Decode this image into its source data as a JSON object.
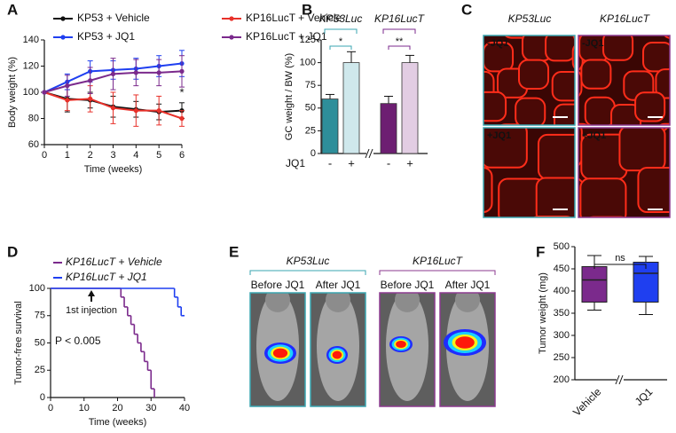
{
  "chart_data": [
    {
      "type": "line",
      "label": "A",
      "xlabel": "Time (weeks)",
      "ylabel": "Body weight (%)",
      "x": [
        0,
        1,
        2,
        3,
        4,
        5,
        6
      ],
      "xlim": [
        0,
        6
      ],
      "xticks": [
        0,
        1,
        2,
        3,
        4,
        5,
        6
      ],
      "ylim": [
        60,
        140
      ],
      "yticks": [
        60,
        80,
        100,
        120,
        140
      ],
      "annotation": "*",
      "series": [
        {
          "name": "KP53 + Vehicle",
          "color": "#111111",
          "values": [
            100,
            95,
            94,
            89,
            87,
            85,
            86
          ],
          "errors": [
            0,
            10,
            6,
            8,
            6,
            6,
            6
          ]
        },
        {
          "name": "KP16LucT + Vehicle",
          "color": "#e8312a",
          "values": [
            100,
            94,
            95,
            88,
            86,
            86,
            80
          ],
          "errors": [
            0,
            8,
            10,
            12,
            12,
            11,
            6
          ]
        },
        {
          "name": "KP53 + JQ1",
          "color": "#1f3ff0",
          "values": [
            100,
            108,
            116,
            117,
            118,
            120,
            122
          ],
          "errors": [
            0,
            6,
            8,
            7,
            8,
            8,
            10
          ]
        },
        {
          "name": "KP16LucT + JQ1",
          "color": "#7b2a8c",
          "values": [
            100,
            105,
            109,
            114,
            115,
            115,
            116
          ],
          "errors": [
            0,
            8,
            10,
            12,
            10,
            10,
            12
          ]
        }
      ]
    },
    {
      "type": "bar",
      "label": "B",
      "ylabel": "GC weight / BW (%)",
      "xlabel": "JQ1",
      "categories": [
        "-",
        "+",
        "-",
        "+"
      ],
      "values": [
        60,
        100,
        55,
        100
      ],
      "errors": [
        5,
        12,
        8,
        8
      ],
      "colors": [
        "#2e8e9a",
        "#cfe8ec",
        "#6d1f72",
        "#e2cde3"
      ],
      "ylim": [
        0,
        125
      ],
      "yticks": [
        0,
        25,
        50,
        75,
        100,
        125
      ],
      "groups": [
        {
          "name": "KP53Luc",
          "color": "#3aa5b0",
          "significance": "*"
        },
        {
          "name": "KP16LucT",
          "color": "#7b2a8c",
          "significance": "**"
        }
      ]
    },
    {
      "type": "step",
      "label": "D",
      "xlabel": "Time (weeks)",
      "ylabel": "Tumor-free survival",
      "xlim": [
        0,
        40
      ],
      "xticks": [
        0,
        10,
        20,
        30,
        40
      ],
      "ylim": [
        0,
        100
      ],
      "yticks": [
        0,
        25,
        50,
        75,
        100
      ],
      "annotations": [
        "1st injection",
        "P < 0.005"
      ],
      "series": [
        {
          "name": "KP16LucT + Vehicle",
          "color": "#7b2a8c",
          "x": [
            0,
            21,
            22,
            23,
            24,
            25,
            26,
            27,
            28,
            29,
            30,
            31
          ],
          "values": [
            100,
            92,
            83,
            75,
            67,
            58,
            50,
            42,
            33,
            25,
            8,
            0
          ]
        },
        {
          "name": "KP16LucT + JQ1",
          "color": "#1f3ff0",
          "x": [
            0,
            37,
            38,
            39,
            40
          ],
          "values": [
            100,
            92,
            83,
            75,
            75
          ]
        }
      ]
    },
    {
      "type": "box",
      "label": "F",
      "ylabel": "Tumor weight (mg)",
      "categories": [
        "Vehicle",
        "JQ1"
      ],
      "colors": [
        "#7b2a8c",
        "#1f3ff0"
      ],
      "ylim": [
        200,
        500
      ],
      "yticks": [
        200,
        250,
        300,
        350,
        400,
        450,
        500
      ],
      "significance": "ns",
      "boxes": [
        {
          "min": 357,
          "q1": 375,
          "median": 425,
          "q3": 455,
          "max": 480
        },
        {
          "min": 347,
          "q1": 375,
          "median": 440,
          "q3": 465,
          "max": 478
        }
      ]
    }
  ],
  "image_panels": [
    {
      "label": "C",
      "columns": [
        "KP53Luc",
        "KP16LucT"
      ],
      "tiles": [
        "-JQ1",
        "-JQ1",
        "+JQ1",
        "+JQ1"
      ]
    },
    {
      "label": "E",
      "groups": [
        "KP53Luc",
        "KP16LucT"
      ],
      "tiles": [
        "Before JQ1",
        "After JQ1",
        "Before JQ1",
        "After JQ1"
      ]
    }
  ]
}
